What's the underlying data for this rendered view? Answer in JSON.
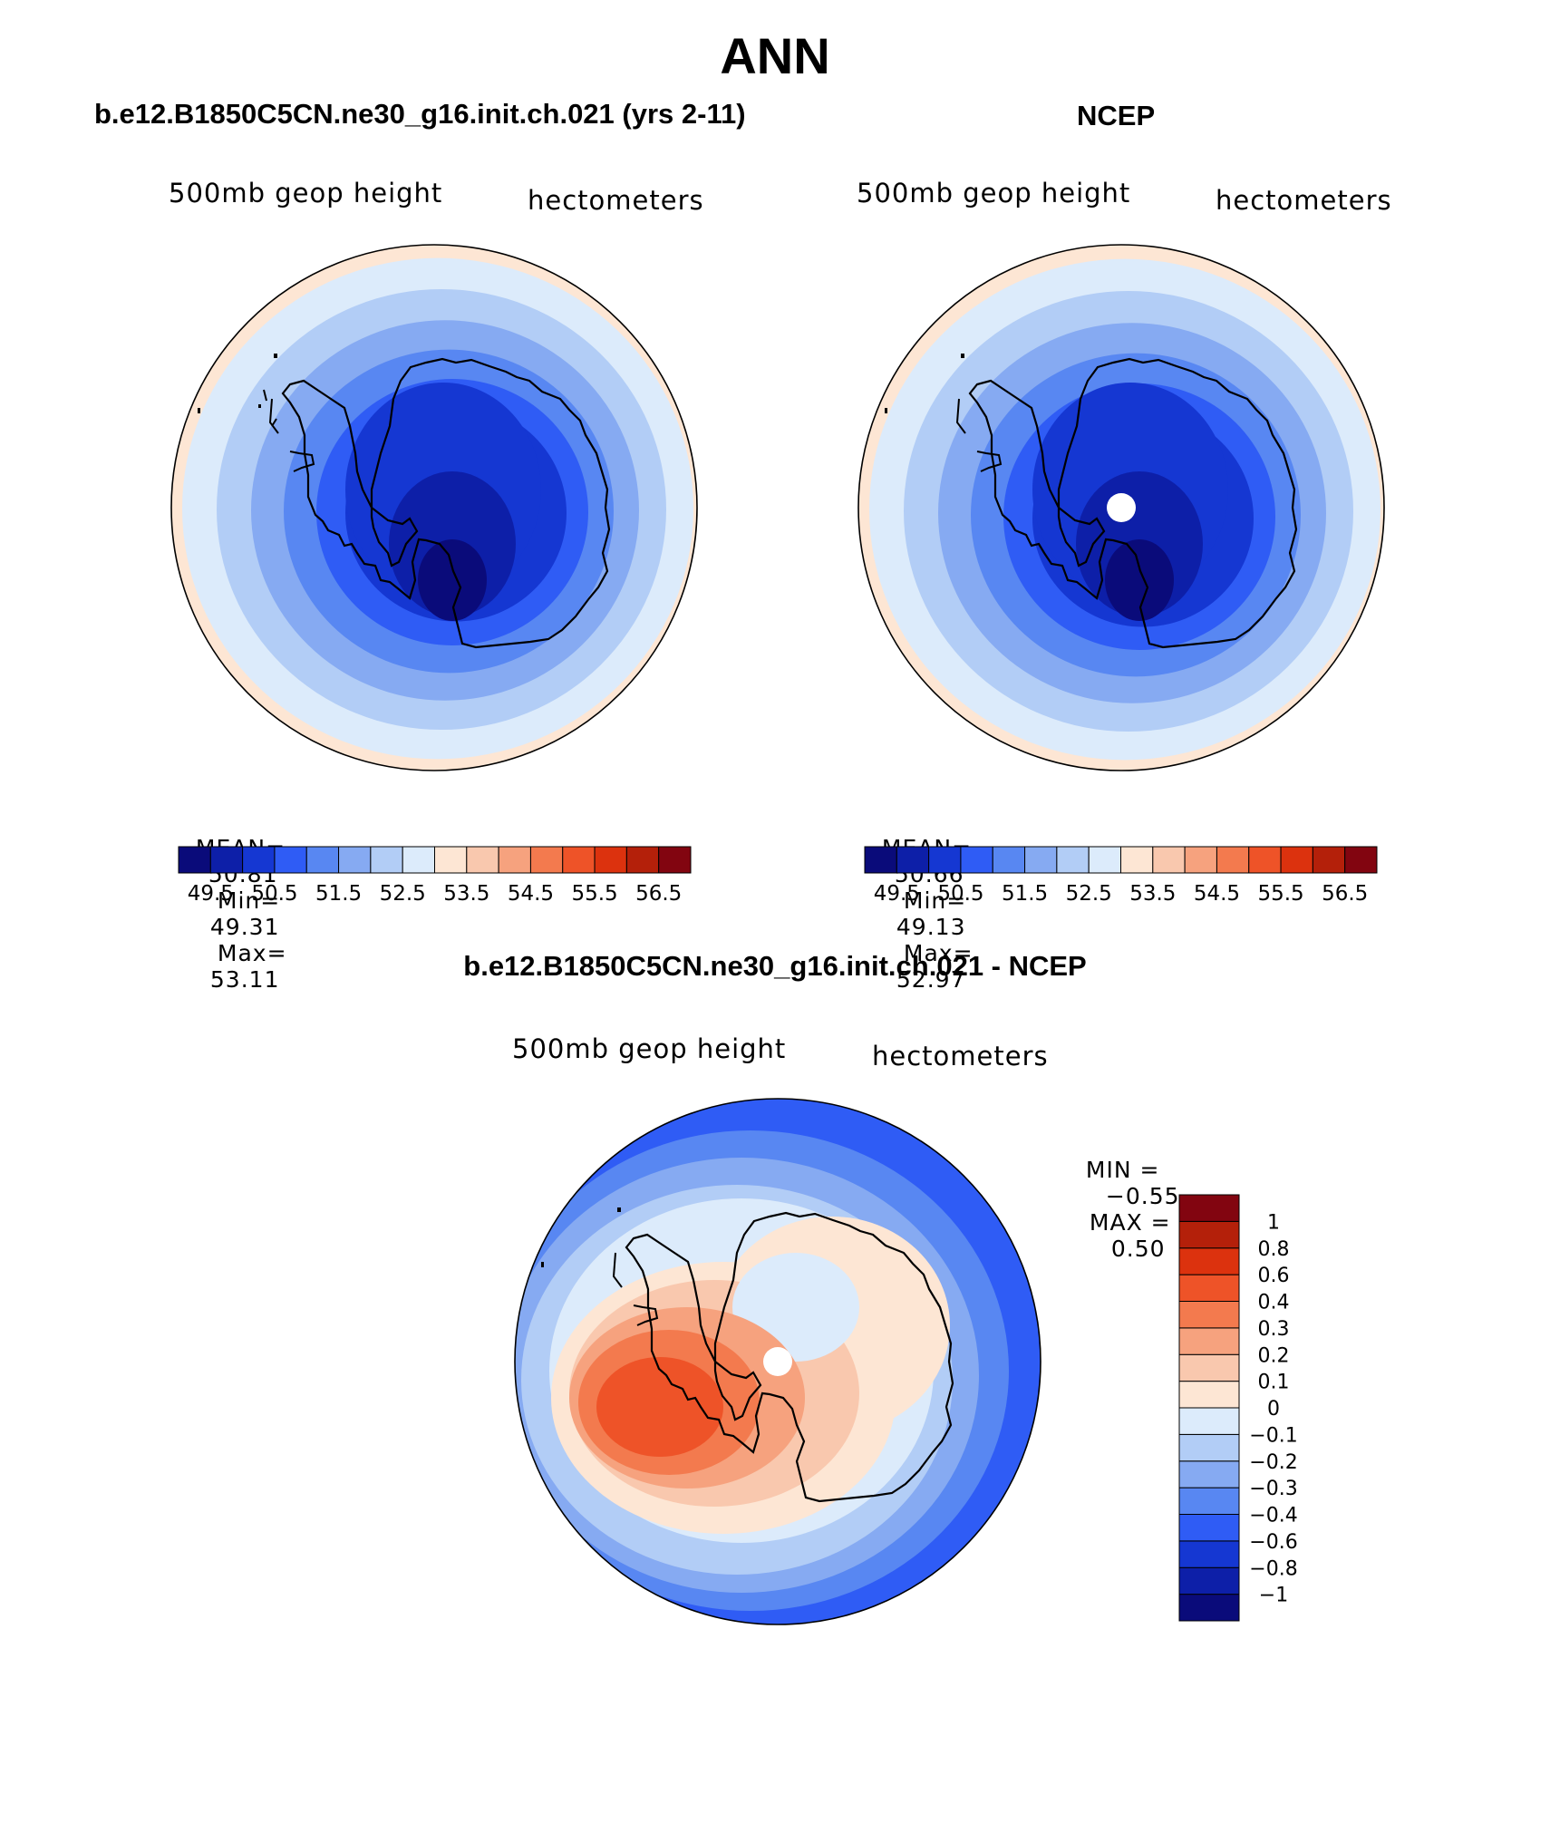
{
  "page": {
    "title": "ANN"
  },
  "panels": [
    {
      "id": "model",
      "subtitle": "b.e12.B1850C5CN.ne30_g16.init.ch.021 (yrs 2-11)",
      "variable_label": "500mb geop height",
      "units_label": "hectometers",
      "stats": {
        "mean_label": "MEAN=",
        "mean": "50.81",
        "min_label": "Min=",
        "min": "49.31",
        "max_label": "Max=",
        "max": "53.11"
      }
    },
    {
      "id": "obs",
      "subtitle": "NCEP",
      "variable_label": "500mb geop height",
      "units_label": "hectometers",
      "stats": {
        "mean_label": "MEAN=",
        "mean": "50.66",
        "min_label": "Min=",
        "min": "49.13",
        "max_label": "Max=",
        "max": "52.97"
      }
    },
    {
      "id": "diff",
      "subtitle": "b.e12.B1850C5CN.ne30_g16.init.ch.021 - NCEP",
      "variable_label": "500mb geop height",
      "units_label": "hectometers",
      "stats": {
        "min_label": "MIN =",
        "min": "−0.55",
        "max_label": "MAX =",
        "max": "0.50"
      }
    }
  ],
  "colorbars": {
    "absolute": {
      "colors": [
        "#0a0b7a",
        "#0d1fa8",
        "#1537d2",
        "#2f5cf5",
        "#5887f2",
        "#86aaf2",
        "#b2cdf6",
        "#dcebfb",
        "#fde6d4",
        "#f9c8ae",
        "#f6a27e",
        "#f37a4e",
        "#ee5328",
        "#dc320e",
        "#b4200a",
        "#820510"
      ],
      "tick_labels": [
        "49.5",
        "50.5",
        "51.5",
        "52.5",
        "53.5",
        "54.5",
        "55.5",
        "56.5"
      ]
    },
    "difference": {
      "colors": [
        "#0a0b7a",
        "#0d1fa8",
        "#1537d2",
        "#2f5cf5",
        "#5887f2",
        "#86aaf2",
        "#b2cdf6",
        "#dcebfb",
        "#fde6d4",
        "#f9c8ae",
        "#f6a27e",
        "#f37a4e",
        "#ee5328",
        "#dc320e",
        "#b4200a",
        "#820510"
      ],
      "tick_labels": [
        "−1",
        "−0.8",
        "−0.6",
        "−0.4",
        "−0.3",
        "−0.2",
        "−0.1",
        "0",
        "0.1",
        "0.2",
        "0.3",
        "0.4",
        "0.6",
        "0.8",
        "1"
      ]
    }
  },
  "map_colors": {
    "model": {
      "base": "#2f5cf5",
      "rings": [
        "#fde6d4",
        "#dcebfb",
        "#b2cdf6",
        "#86aaf2",
        "#5887f2",
        "#2f5cf5",
        "#1537d2"
      ],
      "core1": "#1537d2",
      "core2": "#0d1fa8",
      "core3": "#0a0b7a"
    },
    "obs": {
      "base": "#2f5cf5",
      "rings": [
        "#fde6d4",
        "#dcebfb",
        "#b2cdf6",
        "#86aaf2",
        "#5887f2",
        "#2f5cf5",
        "#1537d2"
      ],
      "core1": "#1537d2",
      "core2": "#0d1fa8",
      "core3": "#0a0b7a"
    },
    "diff": {
      "outer": "#2f5cf5",
      "r1": "#5887f2",
      "r2": "#86aaf2",
      "r3": "#b2cdf6",
      "r4": "#dcebfb",
      "warm1": "#fde6d4",
      "warm2": "#f9c8ae",
      "warm3": "#f6a27e",
      "warm4": "#f37a4e",
      "warm5": "#ee5328"
    }
  }
}
